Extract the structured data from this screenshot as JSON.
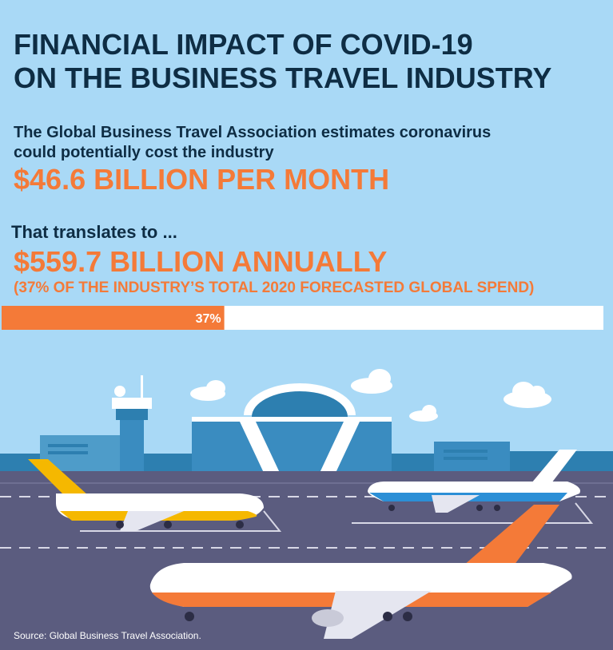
{
  "header": {
    "title_lines": [
      "FINANCIAL IMPACT OF COVID-19",
      "ON THE BUSINESS TRAVEL INDUSTRY"
    ]
  },
  "intro": {
    "lines": [
      "The Global Business Travel Association estimates coronavirus",
      "could potentially cost the industry"
    ],
    "highlight": "$46.6 BILLION PER MONTH"
  },
  "annual": {
    "lead": "That translates to ...",
    "highlight": "$559.7 BILLION ANNUALLY",
    "note": "(37% OF THE INDUSTRY’S TOTAL 2020 FORECASTED GLOBAL SPEND)"
  },
  "chart_data": {
    "type": "bar",
    "orientation": "horizontal",
    "values": [
      37
    ],
    "value_labels": [
      "37%"
    ],
    "xlim": [
      0,
      100
    ],
    "color": "#f47a38"
  },
  "footer": {
    "source": "Source: Global Business Travel Association."
  }
}
